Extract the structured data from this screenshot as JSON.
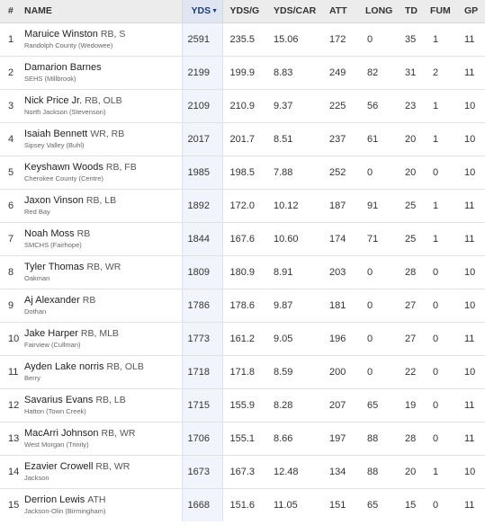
{
  "headers": {
    "rank": "#",
    "name": "NAME",
    "yds": "YDS",
    "yds_sort_icon": "sort-descending-icon",
    "ydsg": "YDS/G",
    "ydscar": "YDS/CAR",
    "att": "ATT",
    "long": "LONG",
    "td": "TD",
    "fum": "FUM",
    "gp": "GP"
  },
  "rows": [
    {
      "rank": "1",
      "name": "Maruice Winston",
      "pos": "RB, S",
      "school": "Randolph County (Wedowee)",
      "yds": "2591",
      "ydsg": "235.5",
      "ydscar": "15.06",
      "att": "172",
      "long": "0",
      "td": "35",
      "fum": "1",
      "gp": "11"
    },
    {
      "rank": "2",
      "name": "Damarion Barnes",
      "pos": "",
      "school": "SEHS (Millbrook)",
      "yds": "2199",
      "ydsg": "199.9",
      "ydscar": "8.83",
      "att": "249",
      "long": "82",
      "td": "31",
      "fum": "2",
      "gp": "11"
    },
    {
      "rank": "3",
      "name": "Nick Price Jr.",
      "pos": "RB, OLB",
      "school": "North Jackson (Stevenson)",
      "yds": "2109",
      "ydsg": "210.9",
      "ydscar": "9.37",
      "att": "225",
      "long": "56",
      "td": "23",
      "fum": "1",
      "gp": "10"
    },
    {
      "rank": "4",
      "name": "Isaiah Bennett",
      "pos": "WR, RB",
      "school": "Sipsey Valley (Buhl)",
      "yds": "2017",
      "ydsg": "201.7",
      "ydscar": "8.51",
      "att": "237",
      "long": "61",
      "td": "20",
      "fum": "1",
      "gp": "10"
    },
    {
      "rank": "5",
      "name": "Keyshawn Woods",
      "pos": "RB, FB",
      "school": "Cherokee County (Centre)",
      "yds": "1985",
      "ydsg": "198.5",
      "ydscar": "7.88",
      "att": "252",
      "long": "0",
      "td": "20",
      "fum": "0",
      "gp": "10"
    },
    {
      "rank": "6",
      "name": "Jaxon Vinson",
      "pos": "RB, LB",
      "school": "Red Bay",
      "yds": "1892",
      "ydsg": "172.0",
      "ydscar": "10.12",
      "att": "187",
      "long": "91",
      "td": "25",
      "fum": "1",
      "gp": "11"
    },
    {
      "rank": "7",
      "name": "Noah Moss",
      "pos": "RB",
      "school": "SMCHS (Fairhope)",
      "yds": "1844",
      "ydsg": "167.6",
      "ydscar": "10.60",
      "att": "174",
      "long": "71",
      "td": "25",
      "fum": "1",
      "gp": "11"
    },
    {
      "rank": "8",
      "name": "Tyler Thomas",
      "pos": "RB, WR",
      "school": "Oakman",
      "yds": "1809",
      "ydsg": "180.9",
      "ydscar": "8.91",
      "att": "203",
      "long": "0",
      "td": "28",
      "fum": "0",
      "gp": "10"
    },
    {
      "rank": "9",
      "name": "Aj Alexander",
      "pos": "RB",
      "school": "Dothan",
      "yds": "1786",
      "ydsg": "178.6",
      "ydscar": "9.87",
      "att": "181",
      "long": "0",
      "td": "27",
      "fum": "0",
      "gp": "10"
    },
    {
      "rank": "10",
      "name": "Jake Harper",
      "pos": "RB, MLB",
      "school": "Fairview (Cullman)",
      "yds": "1773",
      "ydsg": "161.2",
      "ydscar": "9.05",
      "att": "196",
      "long": "0",
      "td": "27",
      "fum": "0",
      "gp": "11"
    },
    {
      "rank": "11",
      "name": "Ayden Lake norris",
      "pos": "RB, OLB",
      "school": "Berry",
      "yds": "1718",
      "ydsg": "171.8",
      "ydscar": "8.59",
      "att": "200",
      "long": "0",
      "td": "22",
      "fum": "0",
      "gp": "10"
    },
    {
      "rank": "12",
      "name": "Savarius Evans",
      "pos": "RB, LB",
      "school": "Hatton (Town Creek)",
      "yds": "1715",
      "ydsg": "155.9",
      "ydscar": "8.28",
      "att": "207",
      "long": "65",
      "td": "19",
      "fum": "0",
      "gp": "11"
    },
    {
      "rank": "13",
      "name": "MacArri Johnson",
      "pos": "RB, WR",
      "school": "West Morgan (Trinity)",
      "yds": "1706",
      "ydsg": "155.1",
      "ydscar": "8.66",
      "att": "197",
      "long": "88",
      "td": "28",
      "fum": "0",
      "gp": "11"
    },
    {
      "rank": "14",
      "name": "Ezavier Crowell",
      "pos": "RB, WR",
      "school": "Jackson",
      "yds": "1673",
      "ydsg": "167.3",
      "ydscar": "12.48",
      "att": "134",
      "long": "88",
      "td": "20",
      "fum": "1",
      "gp": "10"
    },
    {
      "rank": "15",
      "name": "Derrion Lewis",
      "pos": "ATH",
      "school": "Jackson-Olin (Birmingham)",
      "yds": "1668",
      "ydsg": "151.6",
      "ydscar": "11.05",
      "att": "151",
      "long": "65",
      "td": "15",
      "fum": "0",
      "gp": "11"
    }
  ]
}
